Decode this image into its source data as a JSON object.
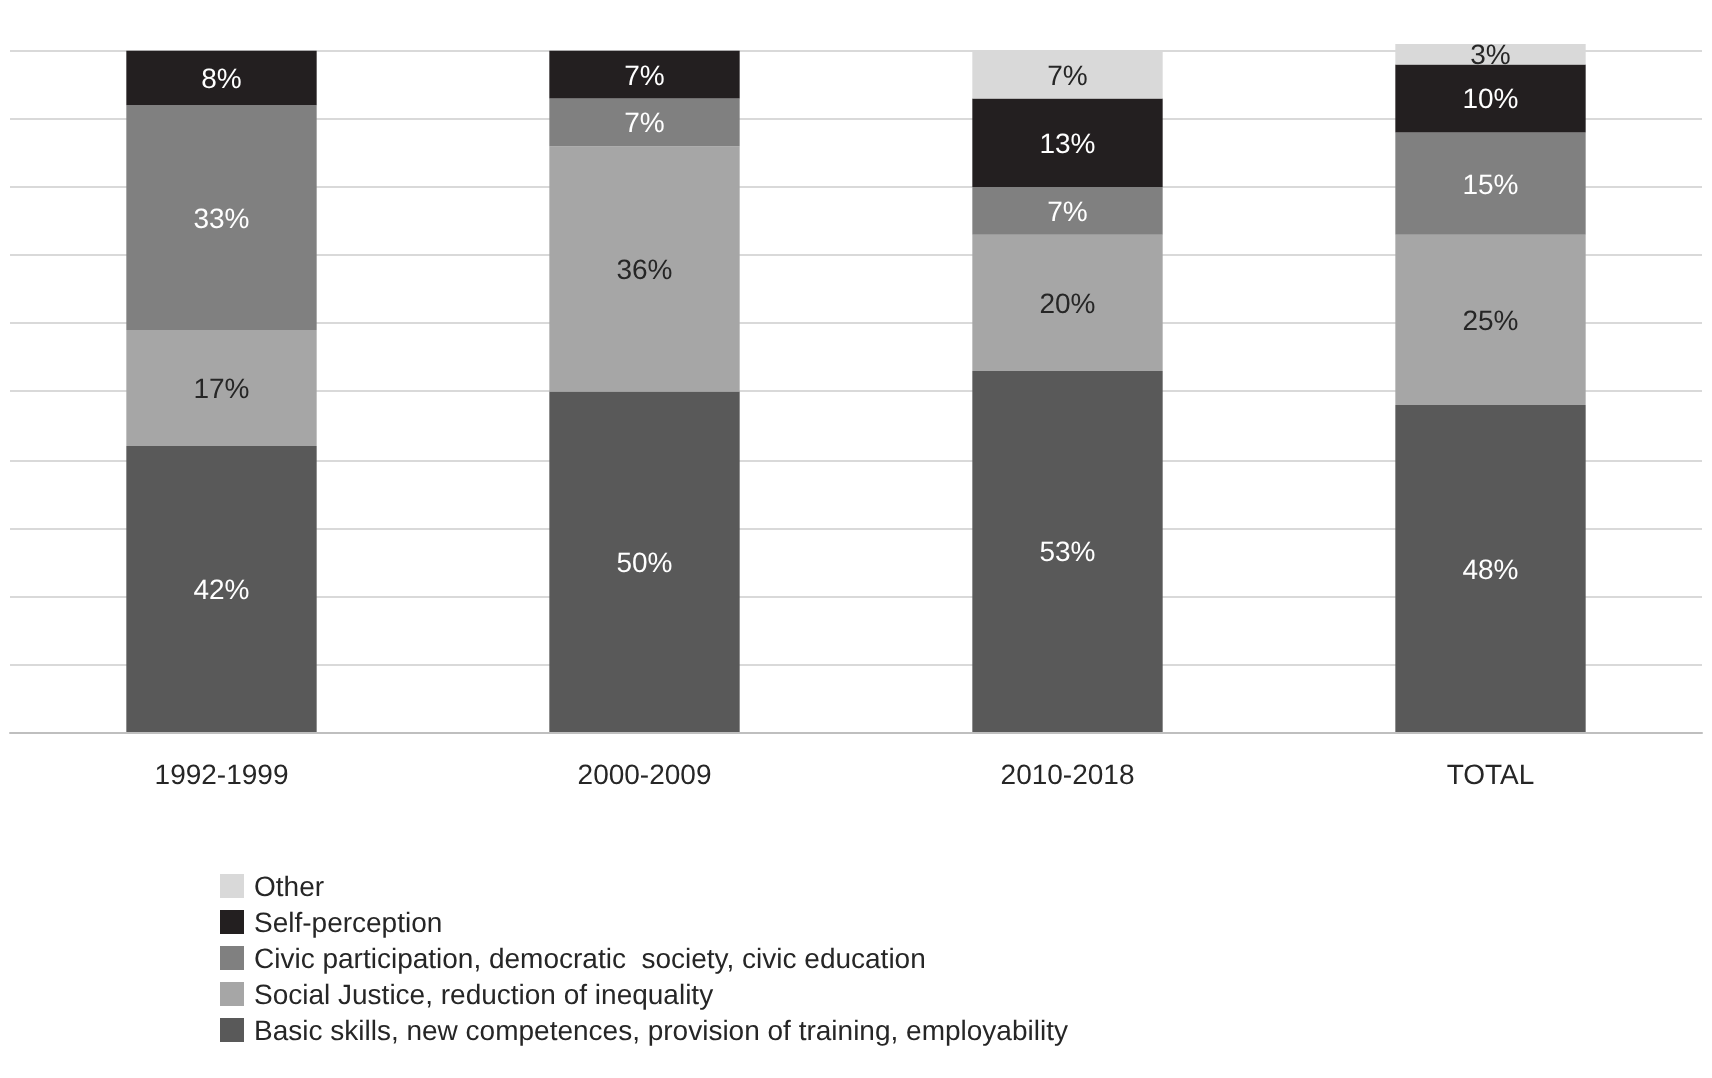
{
  "chart_data": {
    "type": "bar",
    "stacked": true,
    "categories": [
      "1992-1999",
      "2000-2009",
      "2010-2018",
      "TOTAL"
    ],
    "series": [
      {
        "name": "Basic skills, new competences, provision of training, employability",
        "color": "#595959",
        "values": [
          42,
          50,
          53,
          48
        ],
        "value_labels": [
          "42%",
          "50%",
          "53%",
          "48%"
        ]
      },
      {
        "name": "Social Justice, reduction of inequality",
        "color": "#a6a6a6",
        "values": [
          17,
          36,
          20,
          25
        ],
        "value_labels": [
          "17%",
          "36%",
          "20%",
          "25%"
        ]
      },
      {
        "name": "Civic participation, democratic  society, civic education",
        "color": "#808080",
        "values": [
          33,
          7,
          7,
          15
        ],
        "value_labels": [
          "33%",
          "7%",
          "7%",
          "15%"
        ]
      },
      {
        "name": "Self-perception",
        "color": "#231f20",
        "values": [
          8,
          7,
          13,
          10
        ],
        "value_labels": [
          "8%",
          "7%",
          "13%",
          "10%"
        ]
      },
      {
        "name": "Other",
        "color": "#d9d9d9",
        "values": [
          null,
          null,
          7,
          3
        ],
        "value_labels": [
          null,
          null,
          "7%",
          "3%"
        ]
      }
    ],
    "ylim": [
      0,
      101
    ],
    "yticks": [
      {
        "value": 0,
        "label": null
      },
      {
        "value": 10,
        "label": null
      },
      {
        "value": 20,
        "label": null
      },
      {
        "value": 30,
        "label": null
      },
      {
        "value": 40,
        "label": null
      },
      {
        "value": 50,
        "label": null
      },
      {
        "value": 60,
        "label": null
      },
      {
        "value": 70,
        "label": null
      },
      {
        "value": 80,
        "label": null
      },
      {
        "value": 90,
        "label": null
      },
      {
        "value": 100,
        "label": null
      }
    ],
    "tick_labels": "x",
    "grid": "y",
    "legend": "bottom left"
  }
}
